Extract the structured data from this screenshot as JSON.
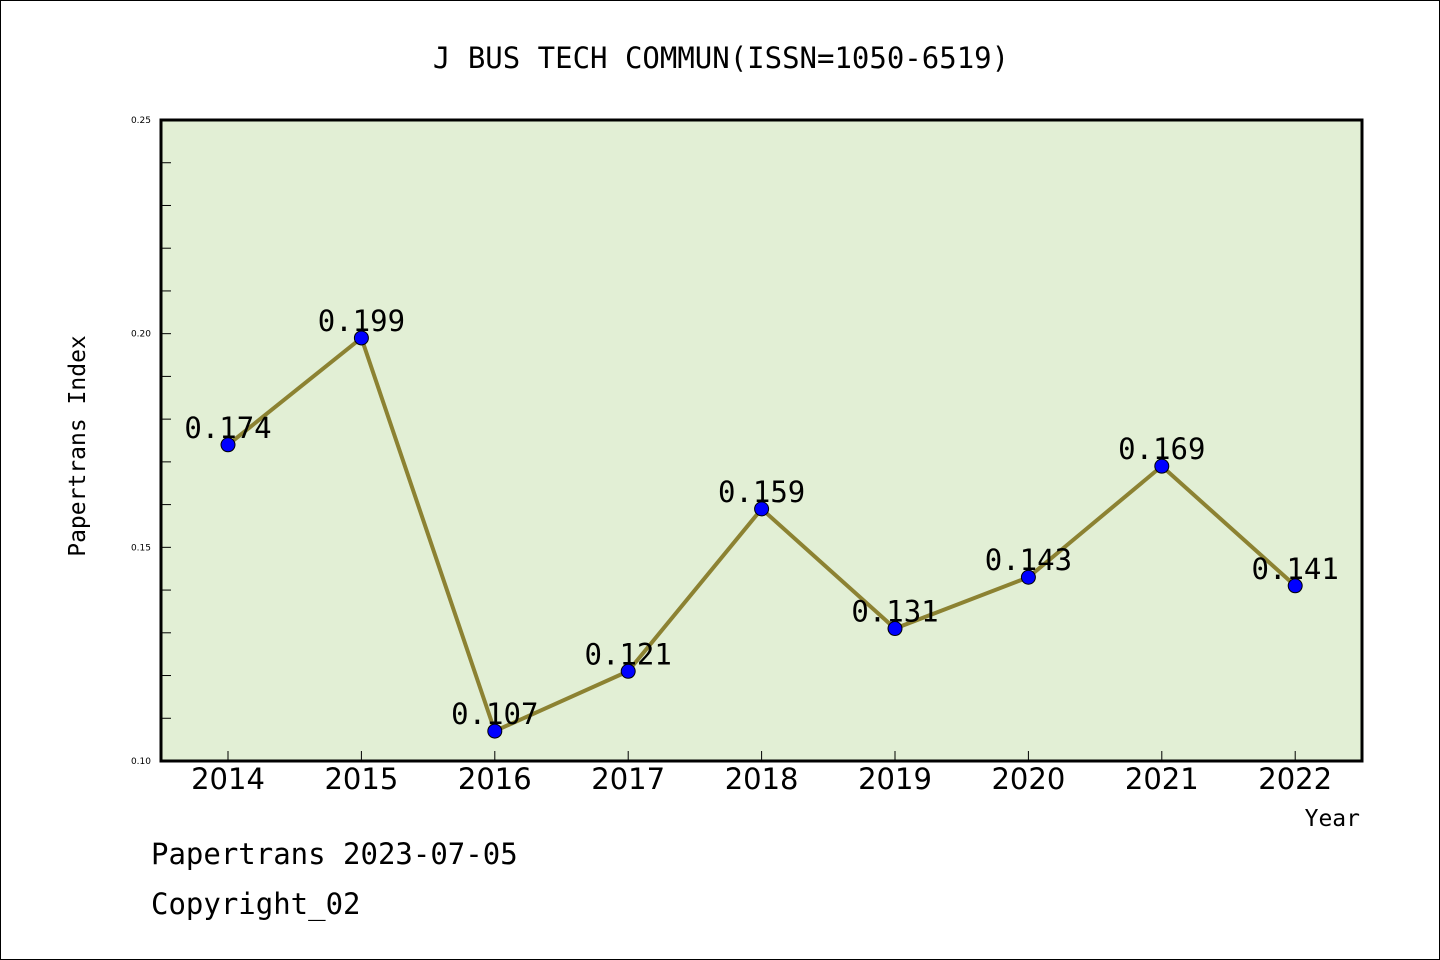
{
  "chart_data": {
    "type": "line",
    "title": "J BUS TECH COMMUN(ISSN=1050-6519)",
    "xlabel": "Year",
    "ylabel": "Papertrans Index",
    "categories": [
      "2014",
      "2015",
      "2016",
      "2017",
      "2018",
      "2019",
      "2020",
      "2021",
      "2022"
    ],
    "series": [
      {
        "values": [
          0.174,
          0.199,
          0.107,
          0.121,
          0.159,
          0.131,
          0.143,
          0.169,
          0.141
        ],
        "labels": [
          "0.174",
          "0.199",
          "0.107",
          "0.121",
          "0.159",
          "0.131",
          "0.143",
          "0.169",
          "0.141"
        ],
        "line_color": "#8c8232",
        "marker_color": "#0000ff"
      }
    ],
    "ylim": [
      0.1,
      0.25
    ],
    "yticks": [
      "0.10",
      "0.15",
      "0.20",
      "0.25"
    ],
    "plot_background": "#e2efd5",
    "grid": false,
    "legend": false
  },
  "footer": {
    "line1": "Papertrans 2023-07-05",
    "line2": "Copyright_02"
  }
}
